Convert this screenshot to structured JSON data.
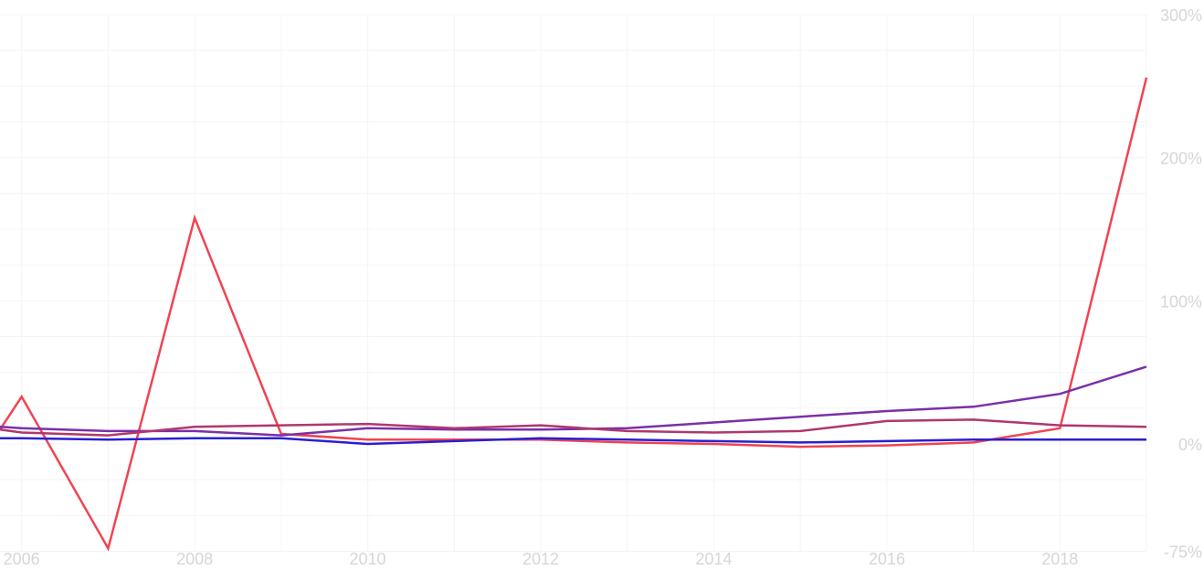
{
  "chart_data": {
    "type": "line",
    "title": "",
    "xlabel": "",
    "ylabel": "",
    "x": [
      2005.75,
      2006,
      2007,
      2008,
      2009,
      2010,
      2011,
      2012,
      2013,
      2014,
      2015,
      2016,
      2017,
      2018,
      2019
    ],
    "xlim": [
      2005.75,
      2019
    ],
    "x_ticks": [
      2006,
      2008,
      2010,
      2012,
      2014,
      2016,
      2018
    ],
    "x_tick_labels": [
      "2006",
      "2008",
      "2010",
      "2012",
      "2014",
      "2016",
      "2018"
    ],
    "ylim": [
      -75,
      300
    ],
    "y_ticks": [
      300,
      200,
      100,
      0,
      -75
    ],
    "y_tick_labels": [
      "300%",
      "200%",
      "100%",
      "0%",
      "-75%"
    ],
    "grid": true,
    "series": [
      {
        "color": "#f04452",
        "values": [
          10,
          33,
          -73,
          158,
          7,
          3,
          3,
          3,
          1,
          0,
          -2,
          -1,
          1,
          11,
          256
        ]
      },
      {
        "color": "#7b2fa8",
        "values": [
          12,
          11,
          9,
          9,
          6,
          11,
          10,
          10,
          11,
          15,
          19,
          23,
          26,
          35,
          54
        ]
      },
      {
        "color": "#b0376e",
        "values": [
          10,
          8,
          6,
          12,
          13,
          14,
          11,
          13,
          9,
          8,
          9,
          16,
          17,
          13,
          12
        ]
      },
      {
        "color": "#2a1fd0",
        "values": [
          4,
          4,
          3,
          4,
          4,
          0,
          2,
          4,
          3,
          2,
          1,
          2,
          3,
          3,
          3
        ]
      }
    ]
  }
}
